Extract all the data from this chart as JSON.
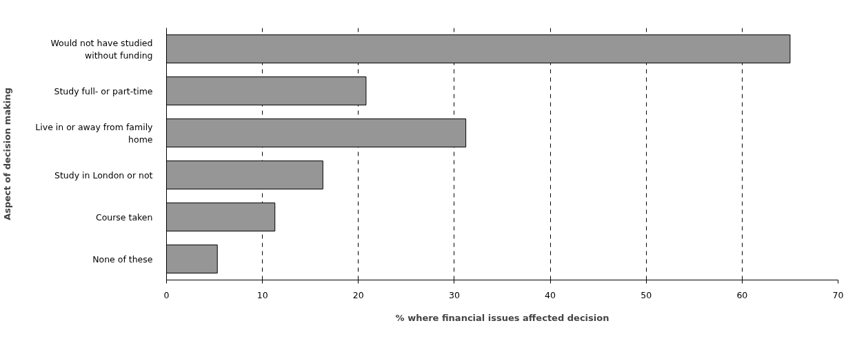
{
  "chart_data": {
    "type": "bar",
    "orientation": "horizontal",
    "xlabel": "% where financial issues affected decision",
    "ylabel": "Aspect of decision making",
    "categories": [
      "Would not have studied without funding",
      "Study full- or part-time",
      "Live in or away from family home",
      "Study in London or not",
      "Course taken",
      "None of these"
    ],
    "values": [
      65,
      20.8,
      31.2,
      16.3,
      11.3,
      5.3
    ],
    "color": "#969696",
    "xlim": [
      0,
      70
    ],
    "xticks": [
      0,
      10,
      20,
      30,
      40,
      50,
      60,
      70
    ],
    "grid": "x"
  }
}
